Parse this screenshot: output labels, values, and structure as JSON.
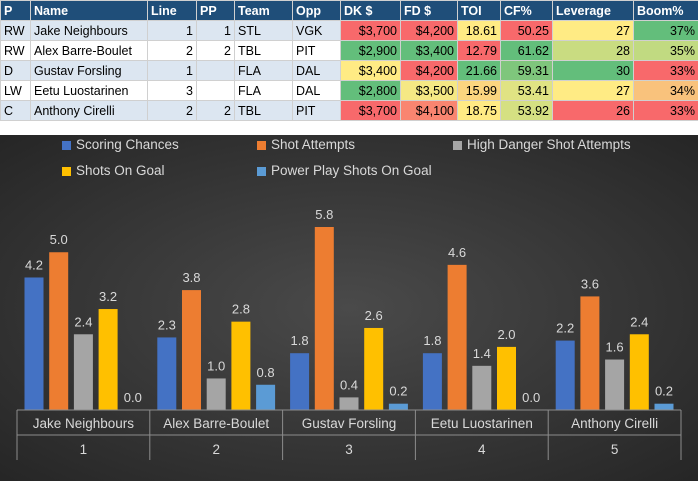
{
  "table": {
    "headers": [
      "P",
      "Name",
      "Line",
      "PP",
      "Team",
      "Opp",
      "DK $",
      "FD $",
      "TOI",
      "CF%",
      "Leverage",
      "Boom%"
    ],
    "rows": [
      [
        "RW",
        "Jake Neighbours",
        "1",
        "1",
        "STL",
        "VGK",
        "$3,700",
        "$4,200",
        "18.61",
        "50.25",
        "27",
        "37%"
      ],
      [
        "RW",
        "Alex Barre-Boulet",
        "2",
        "2",
        "TBL",
        "PIT",
        "$2,900",
        "$3,400",
        "12.79",
        "61.62",
        "28",
        "35%"
      ],
      [
        "D",
        "Gustav Forsling",
        "1",
        "",
        "FLA",
        "DAL",
        "$3,400",
        "$4,200",
        "21.66",
        "59.31",
        "30",
        "33%"
      ],
      [
        "LW",
        "Eetu Luostarinen",
        "3",
        "",
        "FLA",
        "DAL",
        "$2,800",
        "$3,500",
        "15.99",
        "53.41",
        "27",
        "34%"
      ],
      [
        "C",
        "Anthony Cirelli",
        "2",
        "2",
        "TBL",
        "PIT",
        "$3,700",
        "$4,100",
        "18.75",
        "53.92",
        "26",
        "33%"
      ]
    ],
    "cell_colors": {
      "dk": [
        "#f8696b",
        "#63be7b",
        "#ffeb84",
        "#63be7b",
        "#f8696b"
      ],
      "fd": [
        "#f8696b",
        "#63be7b",
        "#f8696b",
        "#f5e884",
        "#f98570"
      ],
      "toi": [
        "#ffeb84",
        "#f8696b",
        "#63be7b",
        "#fbd57f",
        "#ffeb84"
      ],
      "cf": [
        "#f8696b",
        "#63be7b",
        "#7fc67c",
        "#e0e383",
        "#d5e082"
      ],
      "leverage": [
        "#ffeb84",
        "#c9dc81",
        "#63be7b",
        "#ffeb84",
        "#f8696b"
      ],
      "boom": [
        "#63be7b",
        "#c1da81",
        "#f8696b",
        "#f9c27c",
        "#f8696b"
      ]
    }
  },
  "chart_data": {
    "type": "bar",
    "categories": [
      "Jake Neighbours",
      "Alex Barre-Boulet",
      "Gustav Forsling",
      "Eetu Luostarinen",
      "Anthony Cirelli"
    ],
    "category_indices": [
      "1",
      "2",
      "3",
      "4",
      "5"
    ],
    "series": [
      {
        "name": "Scoring Chances",
        "color": "#4472c4",
        "values": [
          4.2,
          2.3,
          1.8,
          1.8,
          2.2
        ]
      },
      {
        "name": "Shot Attempts",
        "color": "#ed7d31",
        "values": [
          5.0,
          3.8,
          5.8,
          4.6,
          3.6
        ]
      },
      {
        "name": "High Danger Shot Attempts",
        "color": "#a5a5a5",
        "values": [
          2.4,
          1.0,
          0.4,
          1.4,
          1.6
        ]
      },
      {
        "name": "Shots On Goal",
        "color": "#ffc000",
        "values": [
          3.2,
          2.8,
          2.6,
          2.0,
          2.4
        ]
      },
      {
        "name": "Power Play Shots On Goal",
        "color": "#5b9bd5",
        "values": [
          0.0,
          0.8,
          0.2,
          0.0,
          0.2
        ]
      }
    ],
    "ylim": [
      0,
      6.3
    ],
    "grid": false,
    "legend": "top",
    "background": "#3b3b3b"
  }
}
